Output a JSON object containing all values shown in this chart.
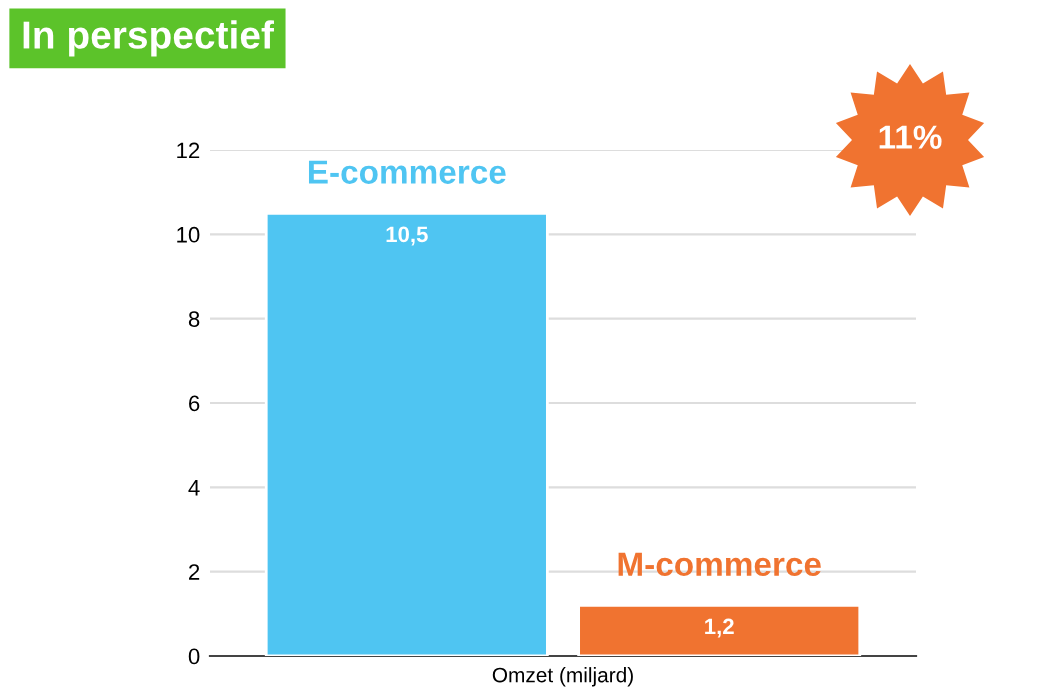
{
  "chart_data": {
    "type": "bar",
    "title": "In perspectief",
    "xlabel": "Omzet (miljard)",
    "categories": [
      "E-commerce",
      "M-commerce"
    ],
    "values": [
      10.5,
      1.2
    ],
    "colors": [
      "#4fc5f2",
      "#f07330"
    ],
    "value_labels": [
      "10,5",
      "1,2"
    ],
    "ylim": [
      0,
      12
    ],
    "yticks": [
      0,
      2,
      4,
      6,
      8,
      10,
      12
    ],
    "grid": "y",
    "annotations": [
      "11%"
    ]
  }
}
